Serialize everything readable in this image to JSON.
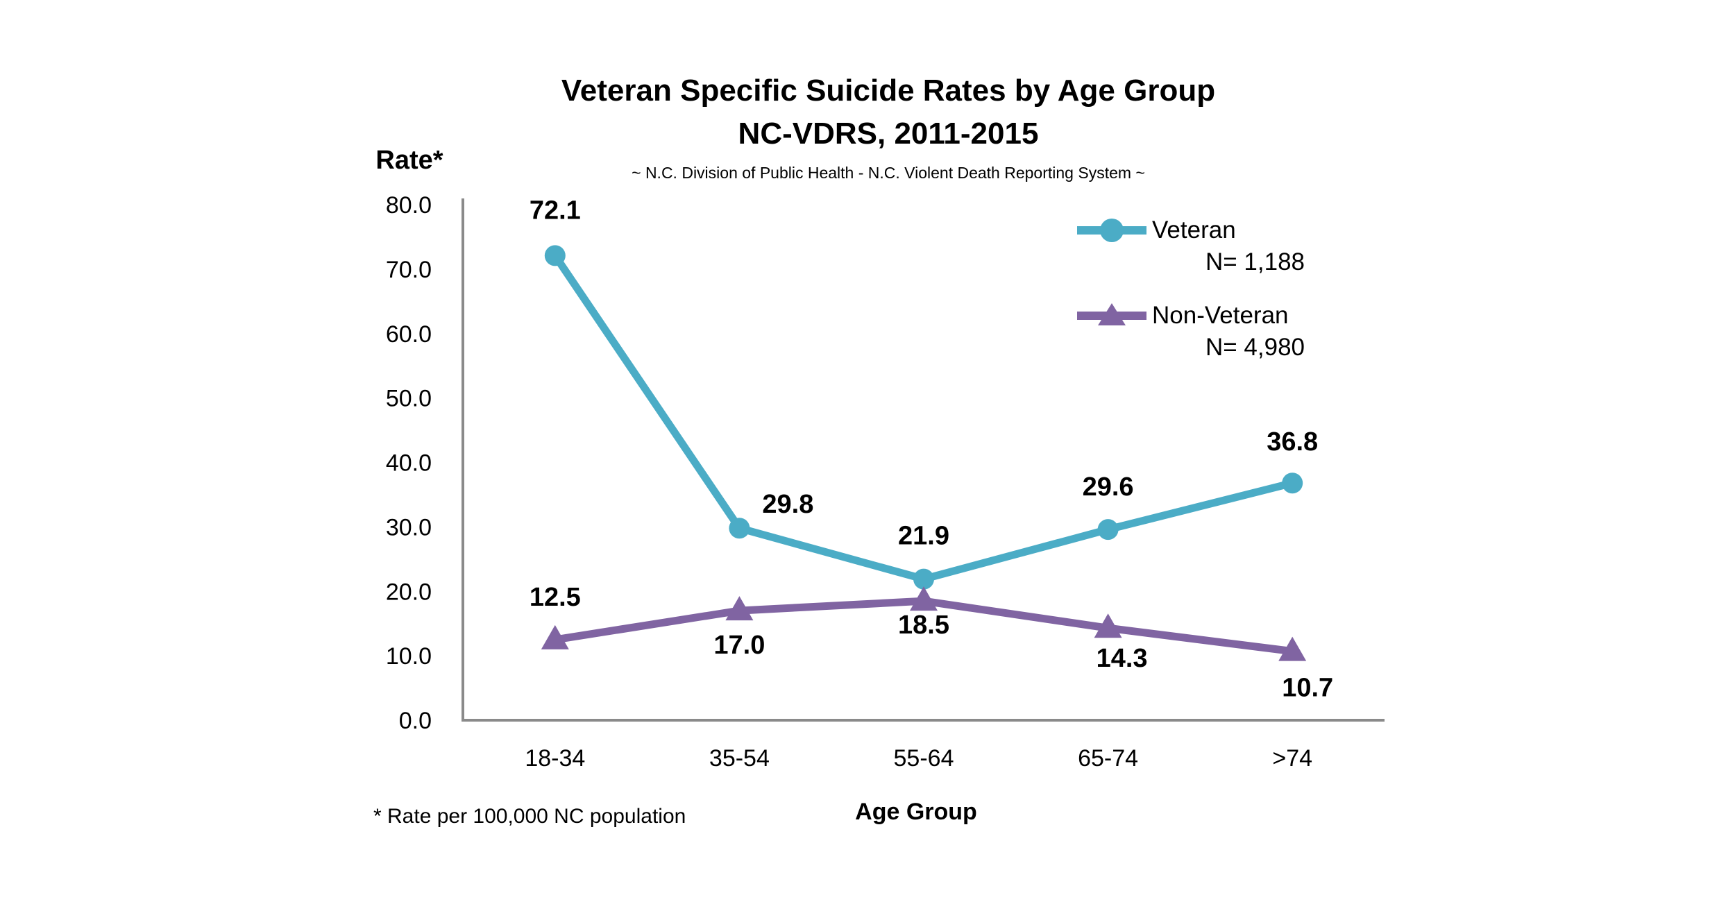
{
  "chart_data": {
    "type": "line",
    "title": "Veteran Specific Suicide Rates by Age Group",
    "title_line2": "NC-VDRS, 2011-2015",
    "subtitle": "~ N.C. Division of Public Health - N.C. Violent Death Reporting System ~",
    "ylabel": "Rate*",
    "xlabel": "Age Group",
    "footnote": "* Rate per 100,000 NC population",
    "categories": [
      "18-34",
      "35-54",
      "55-64",
      "65-74",
      ">74"
    ],
    "ylim": [
      0,
      80
    ],
    "ytick_step": 10,
    "ytick_labels": [
      "80.0",
      "70.0",
      "60.0",
      "50.0",
      "40.0",
      "30.0",
      "20.0",
      "10.0",
      "0.0"
    ],
    "grid": false,
    "legend_position": "top-right",
    "axis_color": "#8a8a8a",
    "text_color": "#000000",
    "series": [
      {
        "name": "Veteran",
        "n_label": "N= 1,188",
        "marker": "circle",
        "color": "#4BACC6",
        "values": [
          72.1,
          29.8,
          21.9,
          29.6,
          36.8
        ],
        "value_labels": [
          "72.1",
          "29.8",
          "21.9",
          "29.6",
          "36.8"
        ],
        "label_offsets": [
          [
            0,
            -53
          ],
          [
            70,
            -22
          ],
          [
            0,
            -50
          ],
          [
            0,
            -49
          ],
          [
            0,
            -47
          ]
        ]
      },
      {
        "name": "Non-Veteran",
        "n_label": "N= 4,980",
        "marker": "triangle",
        "color": "#8064A2",
        "values": [
          12.5,
          17.0,
          18.5,
          14.3,
          10.7
        ],
        "value_labels": [
          "12.5",
          "17.0",
          "18.5",
          "14.3",
          "10.7"
        ],
        "label_offsets": [
          [
            0,
            -49
          ],
          [
            0,
            62
          ],
          [
            0,
            47
          ],
          [
            20,
            56
          ],
          [
            22,
            65
          ]
        ]
      }
    ]
  }
}
